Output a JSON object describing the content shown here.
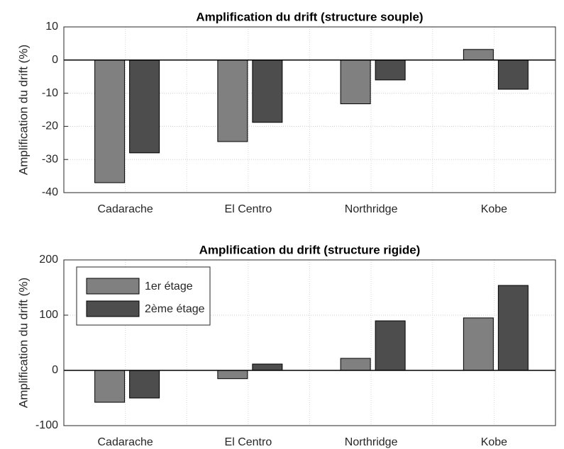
{
  "chart_data": [
    {
      "type": "bar",
      "title": "Amplification du drift (structure souple)",
      "ylabel": "Amplification du drift (%)",
      "categories": [
        "Cadarache",
        "El Centro",
        "Northridge",
        "Kobe"
      ],
      "series": [
        {
          "color": "#808080",
          "values": [
            -37,
            -24.6,
            -13.2,
            3.2
          ]
        },
        {
          "color": "#4d4d4d",
          "values": [
            -28,
            -18.8,
            -6,
            -8.8
          ]
        }
      ],
      "ylim": [
        -40,
        10
      ],
      "yticks": [
        -40,
        -30,
        -20,
        -10,
        0,
        10
      ],
      "grid": true
    },
    {
      "type": "bar",
      "title": "Amplification du drift (structure rigide)",
      "ylabel": "Amplification du drift (%)",
      "categories": [
        "Cadarache",
        "El Centro",
        "Northridge",
        "Kobe"
      ],
      "series": [
        {
          "name": "1er étage",
          "color": "#808080",
          "values": [
            -57.7,
            -15,
            21.8,
            95
          ]
        },
        {
          "name": "2ème étage",
          "color": "#4d4d4d",
          "values": [
            -50,
            11.5,
            89.7,
            153.8
          ]
        }
      ],
      "ylim": [
        -100,
        200
      ],
      "yticks": [
        -100,
        0,
        100,
        200
      ],
      "grid": true,
      "legend": "northwest"
    }
  ]
}
